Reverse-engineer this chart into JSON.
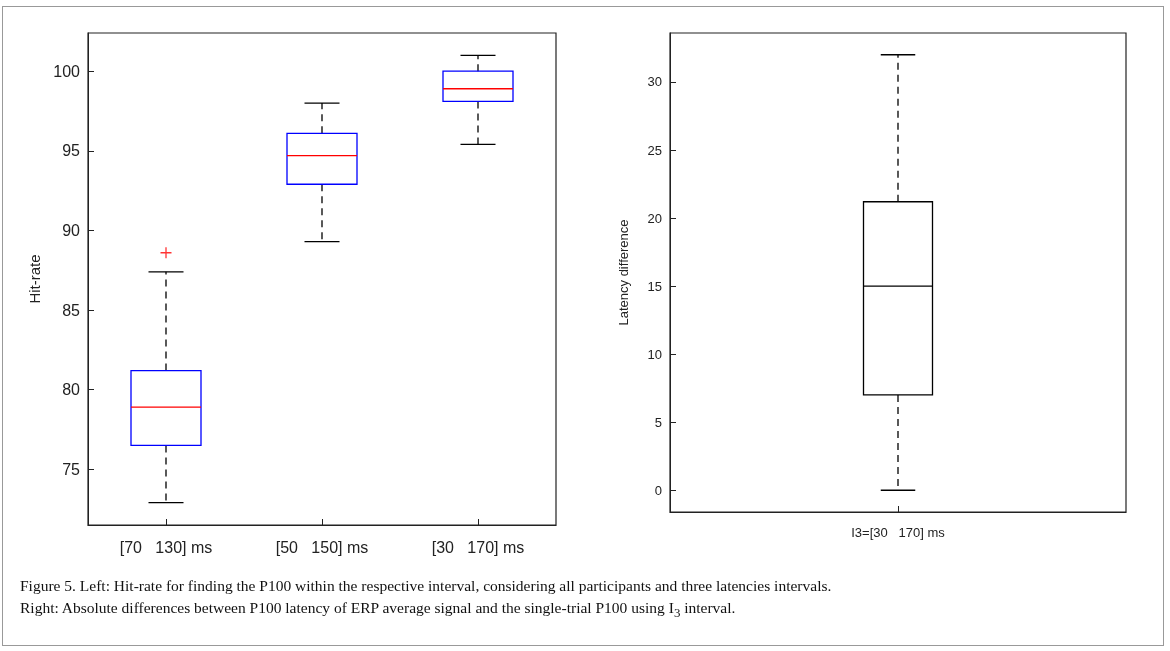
{
  "chart_data": [
    {
      "type": "box",
      "ylabel": "Hit-rate",
      "categories": [
        "[70   130] ms",
        "[50   150] ms",
        "[30   170] ms"
      ],
      "ylim": [
        71.5,
        102.4
      ],
      "yticks": [
        75,
        80,
        85,
        90,
        95,
        100
      ],
      "grid": false,
      "marker": "cross",
      "series": [
        {
          "color": "#0000ff",
          "boxes": [
            {
              "low": 72.9,
              "q1": 76.5,
              "median": 78.9,
              "q3": 81.2,
              "high": 87.4,
              "outliers": [
                88.6
              ]
            },
            {
              "low": 89.3,
              "q1": 92.9,
              "median": 94.7,
              "q3": 96.1,
              "high": 98.0
            },
            {
              "low": 95.4,
              "q1": 98.1,
              "median": 98.9,
              "q3": 100,
              "high": 101.0
            }
          ]
        }
      ],
      "annotations": [
        "Figure 5. Left: Hit-rate for finding the P100 within the respective interval, considering all participants and three latencies intervals.",
        "Right: Absolute differences between P100 latency of ERP average signal and the single-trial P100 using I$_{3}$ interval."
      ]
    },
    {
      "type": "box",
      "ylabel": "Latency difference",
      "categories": [
        "I3=[30   170] ms"
      ],
      "ylim": [
        -1.6,
        33.6
      ],
      "yticks": [
        0,
        5,
        10,
        15,
        20,
        25,
        30
      ],
      "grid": false,
      "series": [
        {
          "color": "#000000",
          "boxes": [
            {
              "low": 0,
              "q1": 7.0,
              "median": 15.0,
              "q3": 21.2,
              "high": 32.0
            }
          ]
        }
      ]
    }
  ]
}
